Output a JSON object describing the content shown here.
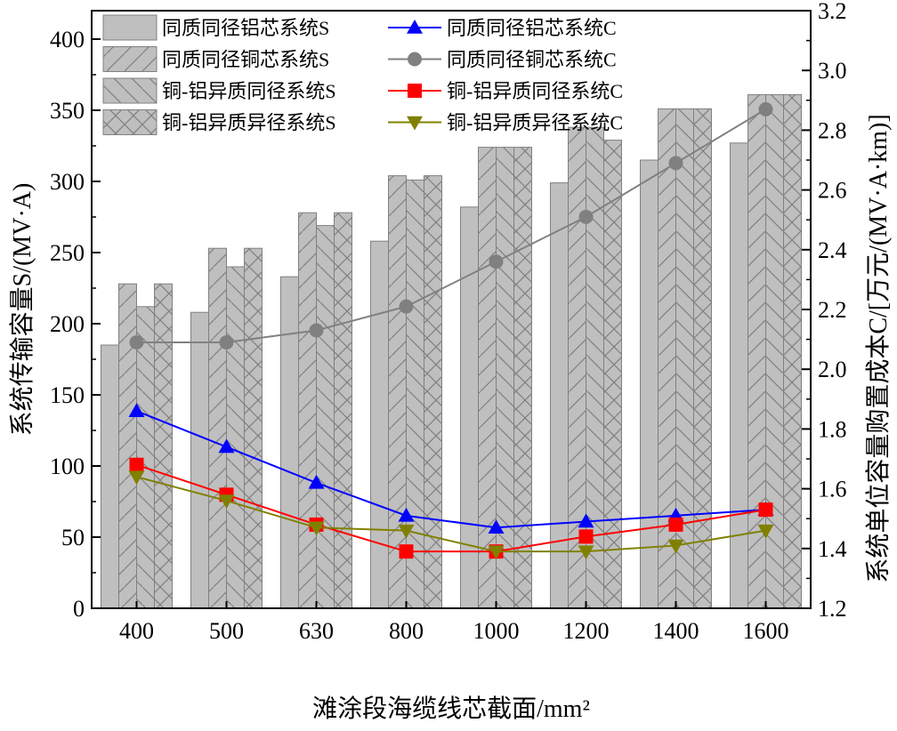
{
  "chart_data": {
    "type": "bar",
    "categories": [
      "400",
      "500",
      "630",
      "800",
      "1000",
      "1200",
      "1400",
      "1600"
    ],
    "xlabel": "滩涂段海缆线芯截面/mm²",
    "ylabel_left": "系统传输容量S/(MV·A)",
    "ylabel_right": "系统单位容量购置成本C/[万元/(MV·A·km)]",
    "ylim_left": [
      0,
      420
    ],
    "ylim_right": [
      1.2,
      3.2
    ],
    "yticks_left": [
      "0",
      "50",
      "100",
      "150",
      "200",
      "250",
      "300",
      "350",
      "400"
    ],
    "yticks_right": [
      "1.2",
      "1.4",
      "1.6",
      "1.8",
      "2.0",
      "2.2",
      "2.4",
      "2.6",
      "2.8",
      "3.0",
      "3.2"
    ],
    "bar_series": [
      {
        "name": "同质同径铝芯系统S",
        "pattern": "solid",
        "values": [
          185,
          208,
          233,
          258,
          282,
          299,
          315,
          327
        ]
      },
      {
        "name": "同质同径铜芯系统S",
        "pattern": "forward-diagonal",
        "values": [
          228,
          253,
          278,
          304,
          324,
          338,
          351,
          361
        ]
      },
      {
        "name": "铜-铝异质同径系统S",
        "pattern": "backward-diagonal",
        "values": [
          212,
          240,
          269,
          301,
          324,
          338,
          351,
          361
        ]
      },
      {
        "name": "铜-铝异质异径系统S",
        "pattern": "cross",
        "values": [
          228,
          253,
          278,
          304,
          324,
          329,
          351,
          361
        ]
      }
    ],
    "line_series": [
      {
        "name": "同质同径铝芯系统C",
        "color": "#0000ff",
        "marker": "triangle-up",
        "values": [
          1.86,
          1.74,
          1.62,
          1.51,
          1.47,
          1.49,
          1.51,
          1.53
        ]
      },
      {
        "name": "同质同径铜芯系统C",
        "color": "#808080",
        "marker": "circle",
        "values": [
          2.09,
          2.09,
          2.13,
          2.21,
          2.36,
          2.51,
          2.69,
          2.87
        ]
      },
      {
        "name": "铜-铝异质同径系统C",
        "color": "#ff0000",
        "marker": "square",
        "values": [
          1.68,
          1.58,
          1.48,
          1.39,
          1.39,
          1.44,
          1.48,
          1.53
        ]
      },
      {
        "name": "铜-铝异质异径系统C",
        "color": "#808000",
        "marker": "triangle-down",
        "values": [
          1.64,
          1.56,
          1.47,
          1.46,
          1.39,
          1.39,
          1.41,
          1.46
        ]
      }
    ],
    "legend_position": "top-left, two columns"
  }
}
